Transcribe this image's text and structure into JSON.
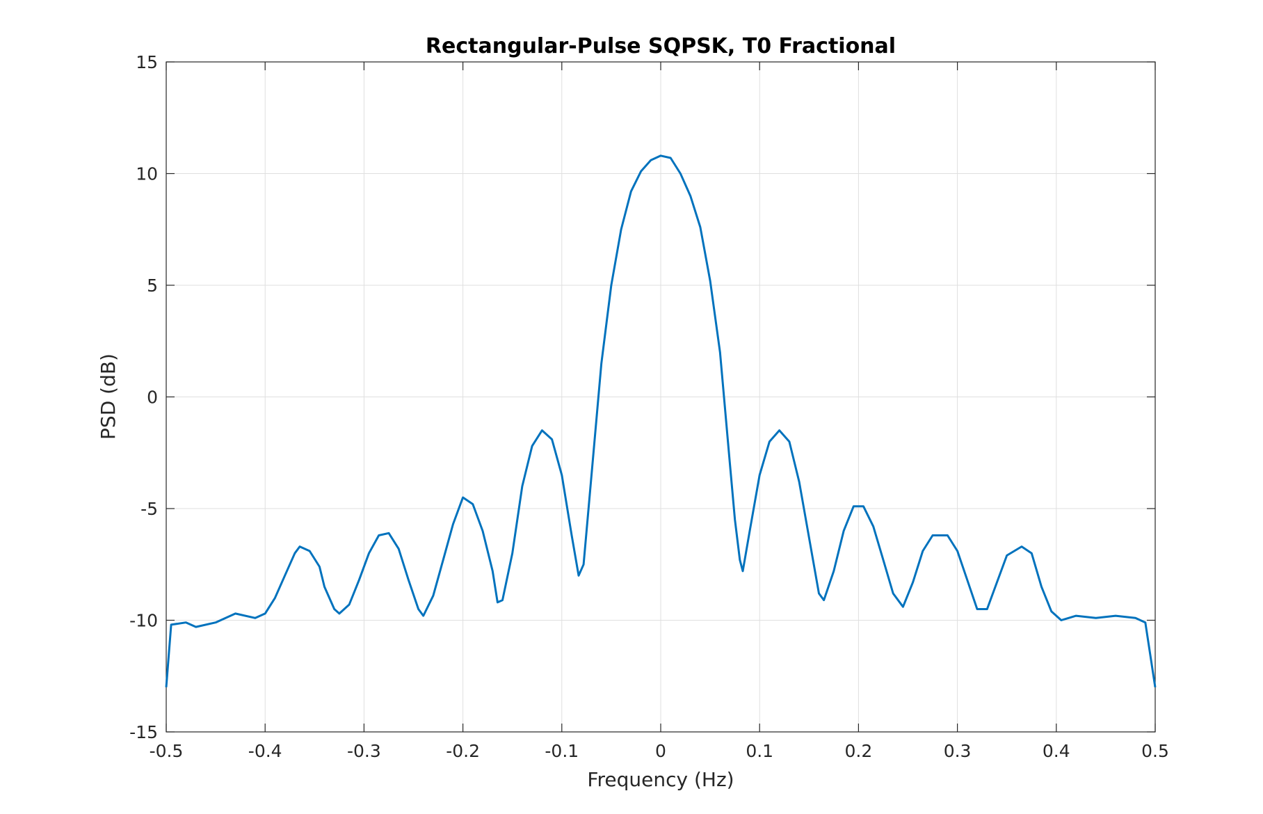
{
  "chart_data": {
    "type": "line",
    "title": "Rectangular-Pulse SQPSK, T0 Fractional",
    "xlabel": "Frequency (Hz)",
    "ylabel": "PSD (dB)",
    "xlim": [
      -0.5,
      0.5
    ],
    "ylim": [
      -15,
      15
    ],
    "xticks": [
      -0.5,
      -0.4,
      -0.3,
      -0.2,
      -0.1,
      0,
      0.1,
      0.2,
      0.3,
      0.4,
      0.5
    ],
    "xtick_labels": [
      "-0.5",
      "-0.4",
      "-0.3",
      "-0.2",
      "-0.1",
      "0",
      "0.1",
      "0.2",
      "0.3",
      "0.4",
      "0.5"
    ],
    "yticks": [
      -15,
      -10,
      -5,
      0,
      5,
      10,
      15
    ],
    "ytick_labels": [
      "-15",
      "-10",
      "-5",
      "0",
      "5",
      "10",
      "15"
    ],
    "grid": true,
    "line_color": "#0072BD",
    "series": [
      {
        "name": "PSD",
        "x": [
          -0.5,
          -0.495,
          -0.48,
          -0.47,
          -0.45,
          -0.43,
          -0.41,
          -0.4,
          -0.39,
          -0.38,
          -0.37,
          -0.365,
          -0.355,
          -0.345,
          -0.34,
          -0.33,
          -0.325,
          -0.315,
          -0.305,
          -0.295,
          -0.285,
          -0.275,
          -0.265,
          -0.255,
          -0.245,
          -0.24,
          -0.23,
          -0.22,
          -0.21,
          -0.2,
          -0.19,
          -0.18,
          -0.17,
          -0.165,
          -0.16,
          -0.15,
          -0.14,
          -0.13,
          -0.12,
          -0.11,
          -0.1,
          -0.09,
          -0.083,
          -0.078,
          -0.07,
          -0.06,
          -0.05,
          -0.04,
          -0.03,
          -0.02,
          -0.01,
          0,
          0.01,
          0.02,
          0.03,
          0.04,
          0.05,
          0.06,
          0.065,
          0.07,
          0.075,
          0.08,
          0.083,
          0.09,
          0.1,
          0.11,
          0.12,
          0.13,
          0.14,
          0.15,
          0.16,
          0.165,
          0.175,
          0.185,
          0.195,
          0.205,
          0.215,
          0.225,
          0.235,
          0.245,
          0.255,
          0.265,
          0.275,
          0.29,
          0.3,
          0.31,
          0.32,
          0.33,
          0.34,
          0.35,
          0.365,
          0.375,
          0.385,
          0.395,
          0.405,
          0.42,
          0.44,
          0.46,
          0.48,
          0.49,
          0.5
        ],
        "y": [
          -13,
          -10.2,
          -10.1,
          -10.3,
          -10.1,
          -9.7,
          -9.9,
          -9.7,
          -9.0,
          -8.0,
          -7.0,
          -6.7,
          -6.9,
          -7.6,
          -8.5,
          -9.5,
          -9.7,
          -9.3,
          -8.2,
          -7.0,
          -6.2,
          -6.1,
          -6.8,
          -8.2,
          -9.5,
          -9.8,
          -8.9,
          -7.3,
          -5.7,
          -4.5,
          -4.8,
          -6.0,
          -7.8,
          -9.2,
          -9.1,
          -7.0,
          -4.0,
          -2.2,
          -1.5,
          -1.9,
          -3.5,
          -6.2,
          -8.0,
          -7.5,
          -3.5,
          1.5,
          5.0,
          7.5,
          9.2,
          10.1,
          10.6,
          10.8,
          10.7,
          10.0,
          9.0,
          7.6,
          5.2,
          2.0,
          -0.5,
          -3.0,
          -5.5,
          -7.3,
          -7.8,
          -6.0,
          -3.5,
          -2.0,
          -1.5,
          -2.0,
          -3.8,
          -6.3,
          -8.8,
          -9.1,
          -7.8,
          -6.0,
          -4.9,
          -4.9,
          -5.8,
          -7.3,
          -8.8,
          -9.4,
          -8.3,
          -6.9,
          -6.2,
          -6.2,
          -6.9,
          -8.2,
          -9.5,
          -9.5,
          -8.3,
          -7.1,
          -6.7,
          -7.0,
          -8.5,
          -9.6,
          -10.0,
          -9.8,
          -9.9,
          -9.8,
          -9.9,
          -10.1,
          -13
        ]
      }
    ]
  }
}
